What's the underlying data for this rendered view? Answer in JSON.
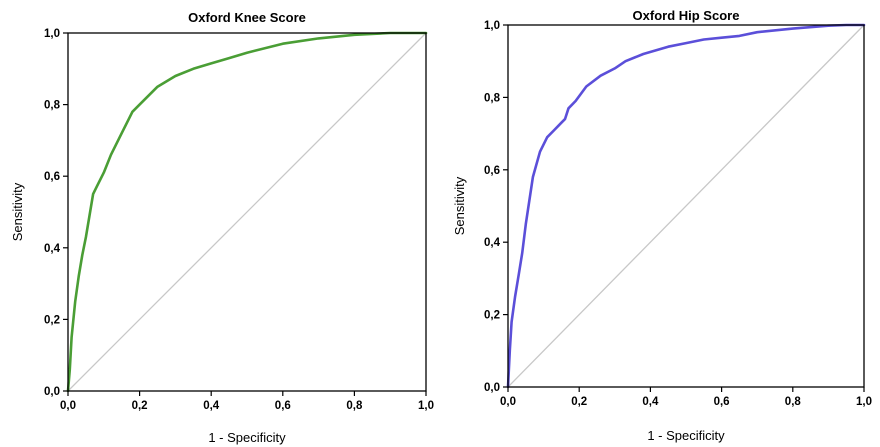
{
  "chart_data": [
    {
      "type": "line",
      "title": "Oxford Knee Score",
      "xlabel": "1 - Specificity",
      "ylabel": "Sensitivity",
      "xlim": [
        0,
        1
      ],
      "ylim": [
        0,
        1
      ],
      "x_ticks": [
        "0,0",
        "0,2",
        "0,4",
        "0,6",
        "0,8",
        "1,0"
      ],
      "y_ticks": [
        "0,0",
        "0,2",
        "0,4",
        "0,6",
        "0,8",
        "1,0"
      ],
      "grid": false,
      "reference_line": [
        [
          0,
          0
        ],
        [
          1,
          1
        ]
      ],
      "series": [
        {
          "color": "#4a9e35",
          "x": [
            0,
            0.005,
            0.01,
            0.02,
            0.03,
            0.04,
            0.05,
            0.06,
            0.07,
            0.08,
            0.1,
            0.12,
            0.15,
            0.18,
            0.2,
            0.25,
            0.3,
            0.35,
            0.4,
            0.45,
            0.5,
            0.6,
            0.7,
            0.8,
            0.9,
            1.0
          ],
          "y": [
            0,
            0.06,
            0.15,
            0.25,
            0.32,
            0.38,
            0.43,
            0.49,
            0.55,
            0.57,
            0.61,
            0.66,
            0.72,
            0.78,
            0.8,
            0.85,
            0.88,
            0.9,
            0.915,
            0.93,
            0.945,
            0.97,
            0.985,
            0.995,
            1.0,
            1.0
          ]
        }
      ]
    },
    {
      "type": "line",
      "title": "Oxford Hip Score",
      "xlabel": "1 - Specificity",
      "ylabel": "Sensitivity",
      "xlim": [
        0,
        1
      ],
      "ylim": [
        0,
        1
      ],
      "x_ticks": [
        "0,0",
        "0,2",
        "0,4",
        "0,6",
        "0,8",
        "1,0"
      ],
      "y_ticks": [
        "0,0",
        "0,2",
        "0,4",
        "0,6",
        "0,8",
        "1,0"
      ],
      "grid": false,
      "reference_line": [
        [
          0,
          0
        ],
        [
          1,
          1
        ]
      ],
      "series": [
        {
          "color": "#5b4fd9",
          "x": [
            0,
            0.005,
            0.01,
            0.02,
            0.03,
            0.04,
            0.05,
            0.07,
            0.09,
            0.11,
            0.13,
            0.15,
            0.16,
            0.17,
            0.19,
            0.22,
            0.26,
            0.3,
            0.33,
            0.38,
            0.45,
            0.5,
            0.55,
            0.6,
            0.65,
            0.7,
            0.8,
            0.9,
            0.95,
            1.0
          ],
          "y": [
            0,
            0.1,
            0.18,
            0.25,
            0.31,
            0.37,
            0.45,
            0.58,
            0.65,
            0.69,
            0.71,
            0.73,
            0.74,
            0.77,
            0.79,
            0.83,
            0.86,
            0.88,
            0.9,
            0.92,
            0.94,
            0.95,
            0.96,
            0.965,
            0.97,
            0.98,
            0.99,
            0.998,
            1.0,
            1.0
          ]
        }
      ]
    }
  ]
}
